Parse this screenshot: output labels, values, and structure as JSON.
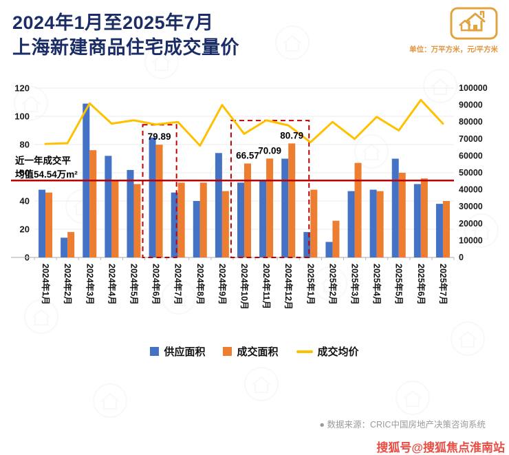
{
  "header": {
    "title_line1": "2024年1月至2025年7月",
    "title_line2": "上海新建商品住宅成交量价",
    "unit_note": "单位：万平方米，元/平方米"
  },
  "chart_data": {
    "type": "bar",
    "title": "2024年1月至2025年7月上海新建商品住宅成交量价",
    "categories": [
      "2024年1月",
      "2024年2月",
      "2024年3月",
      "2024年4月",
      "2024年5月",
      "2024年6月",
      "2024年7月",
      "2024年8月",
      "2024年9月",
      "2024年10月",
      "2024年11月",
      "2024年12月",
      "2025年1月",
      "2025年2月",
      "2025年3月",
      "2025年4月",
      "2025年5月",
      "2025年6月",
      "2025年7月"
    ],
    "series": [
      {
        "name": "供应面积",
        "type": "bar",
        "axis": "left",
        "color": "#4472C4",
        "values": [
          48,
          14,
          109,
          72,
          62,
          85,
          46,
          40,
          74,
          53,
          55,
          70,
          18,
          11,
          47,
          48,
          70,
          52,
          38
        ]
      },
      {
        "name": "成交面积",
        "type": "bar",
        "axis": "left",
        "color": "#ED7D31",
        "values": [
          46,
          18,
          76,
          55,
          52,
          79.89,
          53,
          53,
          47,
          66.57,
          70.09,
          80.79,
          48,
          26,
          67,
          47,
          60,
          56,
          40
        ]
      },
      {
        "name": "成交均价",
        "type": "line",
        "axis": "right",
        "color": "#FFC000",
        "values": [
          67000,
          67500,
          91000,
          79000,
          81000,
          78500,
          80000,
          66000,
          90000,
          73000,
          81000,
          78000,
          68000,
          80000,
          70000,
          83000,
          75000,
          93000,
          79000
        ]
      }
    ],
    "left_axis": {
      "min": 0,
      "max": 120,
      "step": 20,
      "ticks": [
        0,
        20,
        40,
        60,
        80,
        100,
        120
      ]
    },
    "right_axis": {
      "min": 0,
      "max": 100000,
      "step": 10000
    },
    "average_line": {
      "value": 54.54,
      "color": "#C00000"
    },
    "annotations": {
      "avg_label_line1": "近一年成交平",
      "avg_label_line2": "均值54.54万m²"
    },
    "data_labels": [
      {
        "series": "成交面积",
        "index": 5,
        "text": "79.89"
      },
      {
        "series": "成交面积",
        "index": 9,
        "text": "66.57"
      },
      {
        "series": "成交面积",
        "index": 10,
        "text": "70.09"
      },
      {
        "series": "成交面积",
        "index": 11,
        "text": "80.79"
      }
    ],
    "highlight_boxes": [
      {
        "from": 5,
        "to": 5,
        "top_left_value": 94
      },
      {
        "from": 9,
        "to": 11,
        "top_left_value": 97
      }
    ],
    "grid": true,
    "legend_position": "bottom"
  },
  "legend": {
    "items": [
      {
        "label": "供应面积",
        "color": "#4472C4",
        "swatch": "square"
      },
      {
        "label": "成交面积",
        "color": "#ED7D31",
        "swatch": "square"
      },
      {
        "label": "成交均价",
        "color": "#FFC000",
        "swatch": "line"
      }
    ]
  },
  "footer": {
    "source": "●  数据来源：CRIC中国房地产决策咨询系统"
  },
  "watermark_text": "搜狐号@搜狐焦点淮南站"
}
